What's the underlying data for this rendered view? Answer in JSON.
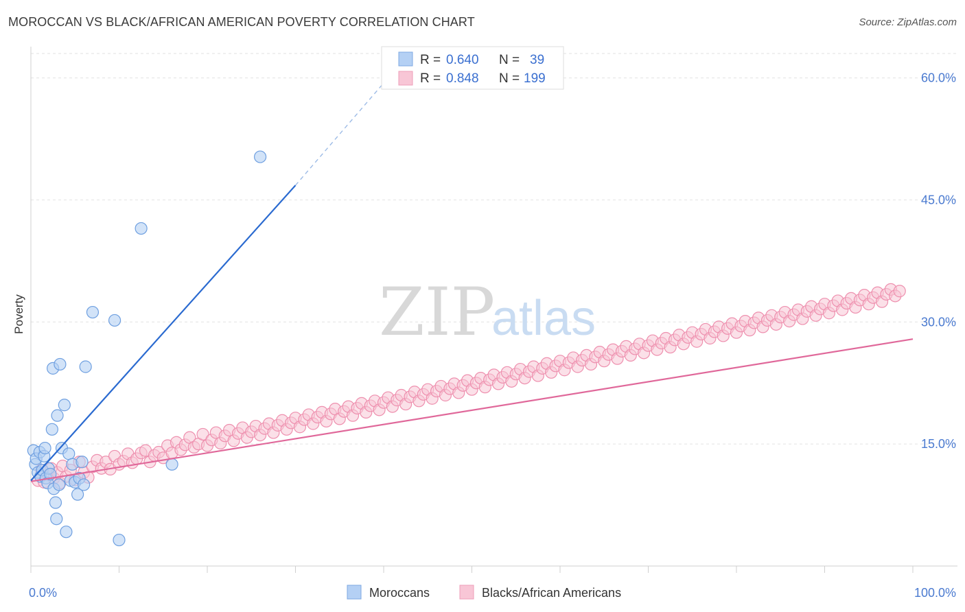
{
  "header": {
    "title": "MOROCCAN VS BLACK/AFRICAN AMERICAN POVERTY CORRELATION CHART",
    "source": "Source: ZipAtlas.com"
  },
  "watermark": {
    "zip": "ZIP",
    "atlas": "atlas"
  },
  "legend": {
    "rows": [
      {
        "r_label": "R =",
        "r_value": "0.640",
        "n_label": "N =",
        "n_value": "39",
        "color": "#a9c8f0"
      },
      {
        "r_label": "R =",
        "r_value": "0.848",
        "n_label": "N =",
        "n_value": "199",
        "color": "#f6b8cc"
      }
    ]
  },
  "bottom_legend": {
    "moroccans": "Moroccans",
    "blacks": "Blacks/African Americans"
  },
  "chart_data": {
    "type": "scatter",
    "title": "MOROCCAN VS BLACK/AFRICAN AMERICAN POVERTY CORRELATION CHART",
    "xlabel": "",
    "ylabel": "Poverty",
    "xlim": [
      0,
      100
    ],
    "ylim": [
      0,
      63
    ],
    "x_tick_labels": [
      "0.0%",
      "100.0%"
    ],
    "y_ticks": [
      15,
      30,
      45,
      60
    ],
    "y_tick_labels": [
      "15.0%",
      "30.0%",
      "45.0%",
      "60.0%"
    ],
    "grid": true,
    "colors": {
      "moroccans": "#6e9fe0",
      "moroccans_fill": "#b4d0f4",
      "moroccans_line": "#2a6ad0",
      "blacks": "#ee8fae",
      "blacks_fill": "#f8c6d6",
      "blacks_line": "#e0689a"
    },
    "series": [
      {
        "name": "Moroccans",
        "points": [
          [
            0.3,
            14.2
          ],
          [
            0.5,
            12.5
          ],
          [
            0.6,
            13.2
          ],
          [
            0.8,
            11.5
          ],
          [
            1.0,
            14.0
          ],
          [
            1.1,
            11.0
          ],
          [
            1.3,
            11.8
          ],
          [
            1.5,
            13.5
          ],
          [
            1.7,
            10.8
          ],
          [
            1.9,
            10.2
          ],
          [
            2.0,
            12.0
          ],
          [
            2.2,
            11.3
          ],
          [
            2.4,
            16.8
          ],
          [
            2.6,
            9.5
          ],
          [
            2.8,
            7.8
          ],
          [
            2.9,
            5.8
          ],
          [
            3.0,
            18.5
          ],
          [
            3.2,
            10.0
          ],
          [
            3.5,
            14.5
          ],
          [
            3.8,
            19.8
          ],
          [
            4.0,
            4.2
          ],
          [
            4.3,
            13.8
          ],
          [
            4.5,
            10.5
          ],
          [
            4.7,
            12.5
          ],
          [
            5.0,
            10.3
          ],
          [
            5.3,
            8.8
          ],
          [
            5.5,
            10.8
          ],
          [
            5.8,
            12.8
          ],
          [
            6.0,
            10.0
          ],
          [
            6.2,
            24.5
          ],
          [
            7.0,
            31.2
          ],
          [
            9.5,
            30.2
          ],
          [
            10.0,
            3.2
          ],
          [
            12.5,
            41.5
          ],
          [
            16.0,
            12.5
          ],
          [
            26.0,
            50.3
          ],
          [
            1.6,
            14.5
          ],
          [
            2.5,
            24.3
          ],
          [
            3.3,
            24.8
          ]
        ],
        "trend": {
          "x": [
            0,
            30
          ],
          "y": [
            10.5,
            46.8
          ]
        },
        "trend_dashed": {
          "x": [
            30,
            40.5
          ],
          "y": [
            46.8,
            60.0
          ]
        }
      },
      {
        "name": "Blacks/African Americans",
        "points": [
          [
            0.8,
            10.5
          ],
          [
            1.2,
            11.8
          ],
          [
            1.5,
            10.3
          ],
          [
            2.0,
            11.2
          ],
          [
            2.3,
            12.0
          ],
          [
            2.6,
            10.8
          ],
          [
            3.0,
            11.5
          ],
          [
            3.3,
            10.2
          ],
          [
            3.6,
            12.3
          ],
          [
            4.0,
            11.0
          ],
          [
            4.5,
            11.8
          ],
          [
            5.0,
            10.6
          ],
          [
            5.5,
            12.8
          ],
          [
            6.0,
            11.5
          ],
          [
            6.5,
            10.9
          ],
          [
            7.0,
            12.2
          ],
          [
            7.5,
            13.0
          ],
          [
            8.0,
            12.0
          ],
          [
            8.5,
            12.8
          ],
          [
            9.0,
            11.9
          ],
          [
            9.5,
            13.5
          ],
          [
            10.0,
            12.5
          ],
          [
            10.5,
            12.9
          ],
          [
            11.0,
            13.8
          ],
          [
            11.5,
            12.7
          ],
          [
            12.0,
            13.2
          ],
          [
            12.5,
            13.9
          ],
          [
            13.0,
            14.2
          ],
          [
            13.5,
            12.8
          ],
          [
            14.0,
            13.6
          ],
          [
            14.5,
            14.0
          ],
          [
            15.0,
            13.3
          ],
          [
            15.5,
            14.8
          ],
          [
            16.0,
            13.9
          ],
          [
            16.5,
            15.2
          ],
          [
            17.0,
            14.3
          ],
          [
            17.5,
            14.9
          ],
          [
            18.0,
            15.8
          ],
          [
            18.5,
            14.6
          ],
          [
            19.0,
            15.0
          ],
          [
            19.5,
            16.2
          ],
          [
            20.0,
            14.8
          ],
          [
            20.5,
            15.5
          ],
          [
            21.0,
            16.4
          ],
          [
            21.5,
            15.1
          ],
          [
            22.0,
            16.0
          ],
          [
            22.5,
            16.7
          ],
          [
            23.0,
            15.4
          ],
          [
            23.5,
            16.3
          ],
          [
            24.0,
            17.0
          ],
          [
            24.5,
            15.8
          ],
          [
            25.0,
            16.5
          ],
          [
            25.5,
            17.2
          ],
          [
            26.0,
            16.1
          ],
          [
            26.5,
            16.9
          ],
          [
            27.0,
            17.5
          ],
          [
            27.5,
            16.4
          ],
          [
            28.0,
            17.3
          ],
          [
            28.5,
            17.9
          ],
          [
            29.0,
            16.8
          ],
          [
            29.5,
            17.6
          ],
          [
            30.0,
            18.2
          ],
          [
            30.5,
            17.1
          ],
          [
            31.0,
            18.0
          ],
          [
            31.5,
            18.6
          ],
          [
            32.0,
            17.5
          ],
          [
            32.5,
            18.3
          ],
          [
            33.0,
            18.9
          ],
          [
            33.5,
            17.8
          ],
          [
            34.0,
            18.7
          ],
          [
            34.5,
            19.3
          ],
          [
            35.0,
            18.1
          ],
          [
            35.5,
            19.0
          ],
          [
            36.0,
            19.6
          ],
          [
            36.5,
            18.5
          ],
          [
            37.0,
            19.4
          ],
          [
            37.5,
            20.0
          ],
          [
            38.0,
            18.9
          ],
          [
            38.5,
            19.7
          ],
          [
            39.0,
            20.3
          ],
          [
            39.5,
            19.2
          ],
          [
            40.0,
            20.1
          ],
          [
            40.5,
            20.7
          ],
          [
            41.0,
            19.6
          ],
          [
            41.5,
            20.4
          ],
          [
            42.0,
            21.0
          ],
          [
            42.5,
            19.9
          ],
          [
            43.0,
            20.8
          ],
          [
            43.5,
            21.4
          ],
          [
            44.0,
            20.3
          ],
          [
            44.5,
            21.1
          ],
          [
            45.0,
            21.7
          ],
          [
            45.5,
            20.6
          ],
          [
            46.0,
            21.5
          ],
          [
            46.5,
            22.1
          ],
          [
            47.0,
            21.0
          ],
          [
            47.5,
            21.8
          ],
          [
            48.0,
            22.4
          ],
          [
            48.5,
            21.3
          ],
          [
            49.0,
            22.2
          ],
          [
            49.5,
            22.8
          ],
          [
            50.0,
            21.7
          ],
          [
            50.5,
            22.5
          ],
          [
            51.0,
            23.1
          ],
          [
            51.5,
            22.0
          ],
          [
            52.0,
            22.9
          ],
          [
            52.5,
            23.5
          ],
          [
            53.0,
            22.4
          ],
          [
            53.5,
            23.2
          ],
          [
            54.0,
            23.8
          ],
          [
            54.5,
            22.7
          ],
          [
            55.0,
            23.6
          ],
          [
            55.5,
            24.2
          ],
          [
            56.0,
            23.1
          ],
          [
            56.5,
            23.9
          ],
          [
            57.0,
            24.5
          ],
          [
            57.5,
            23.4
          ],
          [
            58.0,
            24.3
          ],
          [
            58.5,
            24.9
          ],
          [
            59.0,
            23.8
          ],
          [
            59.5,
            24.6
          ],
          [
            60.0,
            25.2
          ],
          [
            60.5,
            24.1
          ],
          [
            61.0,
            25.0
          ],
          [
            61.5,
            25.6
          ],
          [
            62.0,
            24.5
          ],
          [
            62.5,
            25.3
          ],
          [
            63.0,
            25.9
          ],
          [
            63.5,
            24.8
          ],
          [
            64.0,
            25.7
          ],
          [
            64.5,
            26.3
          ],
          [
            65.0,
            25.2
          ],
          [
            65.5,
            26.0
          ],
          [
            66.0,
            26.6
          ],
          [
            66.5,
            25.5
          ],
          [
            67.0,
            26.4
          ],
          [
            67.5,
            27.0
          ],
          [
            68.0,
            25.9
          ],
          [
            68.5,
            26.7
          ],
          [
            69.0,
            27.3
          ],
          [
            69.5,
            26.2
          ],
          [
            70.0,
            27.1
          ],
          [
            70.5,
            27.7
          ],
          [
            71.0,
            26.6
          ],
          [
            71.5,
            27.4
          ],
          [
            72.0,
            28.0
          ],
          [
            72.5,
            26.9
          ],
          [
            73.0,
            27.8
          ],
          [
            73.5,
            28.4
          ],
          [
            74.0,
            27.3
          ],
          [
            74.5,
            28.1
          ],
          [
            75.0,
            28.7
          ],
          [
            75.5,
            27.6
          ],
          [
            76.0,
            28.5
          ],
          [
            76.5,
            29.1
          ],
          [
            77.0,
            28.0
          ],
          [
            77.5,
            28.8
          ],
          [
            78.0,
            29.4
          ],
          [
            78.5,
            28.3
          ],
          [
            79.0,
            29.2
          ],
          [
            79.5,
            29.8
          ],
          [
            80.0,
            28.7
          ],
          [
            80.5,
            29.5
          ],
          [
            81.0,
            30.1
          ],
          [
            81.5,
            29.0
          ],
          [
            82.0,
            29.9
          ],
          [
            82.5,
            30.5
          ],
          [
            83.0,
            29.4
          ],
          [
            83.5,
            30.2
          ],
          [
            84.0,
            30.8
          ],
          [
            84.5,
            29.7
          ],
          [
            85.0,
            30.6
          ],
          [
            85.5,
            31.2
          ],
          [
            86.0,
            30.1
          ],
          [
            86.5,
            30.9
          ],
          [
            87.0,
            31.5
          ],
          [
            87.5,
            30.4
          ],
          [
            88.0,
            31.3
          ],
          [
            88.5,
            31.9
          ],
          [
            89.0,
            30.8
          ],
          [
            89.5,
            31.6
          ],
          [
            90.0,
            32.2
          ],
          [
            90.5,
            31.1
          ],
          [
            91.0,
            32.0
          ],
          [
            91.5,
            32.6
          ],
          [
            92.0,
            31.5
          ],
          [
            92.5,
            32.3
          ],
          [
            93.0,
            32.9
          ],
          [
            93.5,
            31.8
          ],
          [
            94.0,
            32.7
          ],
          [
            94.5,
            33.3
          ],
          [
            95.0,
            32.2
          ],
          [
            95.5,
            33.0
          ],
          [
            96.0,
            33.6
          ],
          [
            96.5,
            32.5
          ],
          [
            97.0,
            33.4
          ],
          [
            97.5,
            34.0
          ],
          [
            98.0,
            33.2
          ],
          [
            98.5,
            33.8
          ]
        ],
        "trend": {
          "x": [
            0,
            100
          ],
          "y": [
            10.4,
            27.9
          ]
        }
      }
    ]
  }
}
